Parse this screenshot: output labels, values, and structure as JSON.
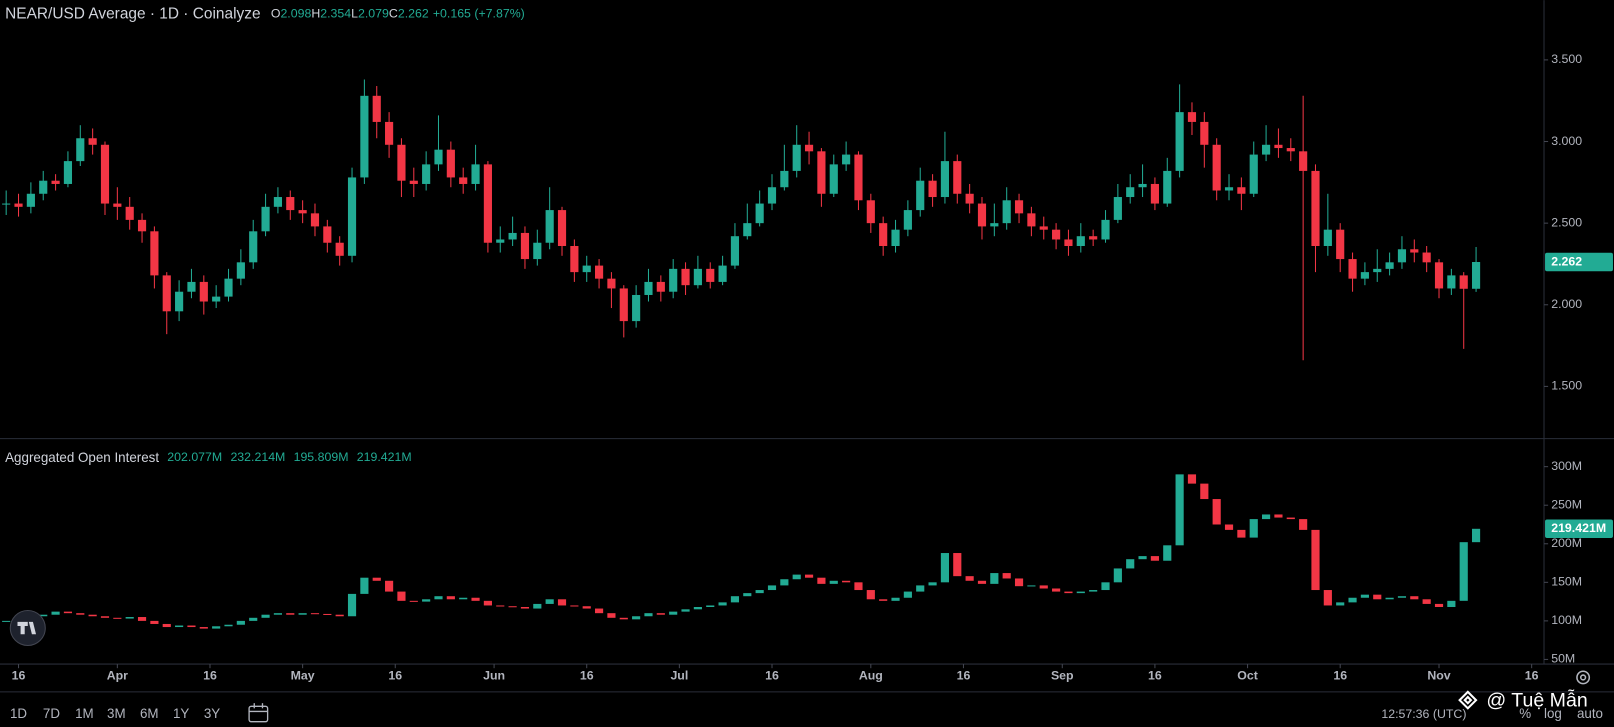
{
  "chart_data": [
    {
      "type": "candlestick",
      "title": "NEAR/USD Average · 1D · Coinalyze",
      "ohlc_keys": [
        "O",
        "H",
        "L",
        "C"
      ],
      "change": "+0.165 (+7.87%)",
      "up_color": "#22ab94",
      "down_color": "#f23645",
      "xlim": [
        -3,
        247
      ],
      "ylim": [
        1.18,
        3.866
      ],
      "yticks": [
        {
          "value": 1.5,
          "label": "1.500"
        },
        {
          "value": 2,
          "label": "2.000"
        },
        {
          "value": 2.5,
          "label": "2.500"
        },
        {
          "value": 3,
          "label": "3.000"
        },
        {
          "value": 3.5,
          "label": "3.500"
        }
      ],
      "x": [
        -2,
        0,
        2,
        4,
        6,
        8,
        10,
        12,
        14,
        16,
        18,
        20,
        22,
        24,
        26,
        28,
        30,
        32,
        34,
        36,
        38,
        40,
        42,
        44,
        46,
        48,
        50,
        52,
        54,
        56,
        58,
        60,
        62,
        64,
        66,
        68,
        70,
        72,
        74,
        76,
        78,
        80,
        82,
        84,
        86,
        88,
        90,
        92,
        94,
        96,
        98,
        100,
        102,
        104,
        106,
        108,
        110,
        112,
        114,
        116,
        118,
        120,
        122,
        124,
        126,
        128,
        130,
        132,
        134,
        136,
        138,
        140,
        142,
        144,
        146,
        148,
        150,
        152,
        154,
        156,
        158,
        160,
        162,
        164,
        166,
        168,
        170,
        172,
        174,
        176,
        178,
        180,
        182,
        184,
        186,
        188,
        190,
        192,
        194,
        196,
        198,
        200,
        202,
        204,
        206,
        208,
        210,
        212,
        214,
        216,
        218,
        220,
        222,
        224,
        226,
        228,
        230,
        232,
        234,
        236
      ],
      "close": [
        2.62,
        2.6,
        2.68,
        2.76,
        2.74,
        2.88,
        3.02,
        2.98,
        2.62,
        2.6,
        2.52,
        2.45,
        2.18,
        1.96,
        2.08,
        2.14,
        2.02,
        2.05,
        2.16,
        2.26,
        2.45,
        2.6,
        2.66,
        2.58,
        2.56,
        2.48,
        2.38,
        2.3,
        2.78,
        3.28,
        3.12,
        2.98,
        2.76,
        2.74,
        2.86,
        2.95,
        2.78,
        2.74,
        2.86,
        2.38,
        2.4,
        2.44,
        2.28,
        2.38,
        2.58,
        2.36,
        2.2,
        2.24,
        2.16,
        2.1,
        1.9,
        2.06,
        2.14,
        2.08,
        2.22,
        2.12,
        2.22,
        2.14,
        2.24,
        2.42,
        2.5,
        2.62,
        2.72,
        2.82,
        2.98,
        2.94,
        2.68,
        2.86,
        2.92,
        2.64,
        2.5,
        2.36,
        2.46,
        2.58,
        2.76,
        2.66,
        2.88,
        2.68,
        2.62,
        2.48,
        2.5,
        2.64,
        2.56,
        2.48,
        2.46,
        2.4,
        2.36,
        2.42,
        2.4,
        2.52,
        2.66,
        2.72,
        2.74,
        2.62,
        2.82,
        3.18,
        3.12,
        2.98,
        2.7,
        2.72,
        2.68,
        2.92,
        2.98,
        2.96,
        2.94,
        2.82,
        2.36,
        2.46,
        2.28,
        2.16,
        2.2,
        2.22,
        2.26,
        2.34,
        2.32,
        2.26,
        2.1,
        2.18,
        2.098,
        2.262
      ],
      "high": [
        2.7,
        2.68,
        2.75,
        2.82,
        2.8,
        2.94,
        3.1,
        3.08,
        3.0,
        2.72,
        2.66,
        2.56,
        2.48,
        2.2,
        2.15,
        2.22,
        2.18,
        2.12,
        2.22,
        2.34,
        2.52,
        2.68,
        2.72,
        2.7,
        2.64,
        2.62,
        2.52,
        2.42,
        2.84,
        3.38,
        3.34,
        3.18,
        3.02,
        2.84,
        2.94,
        3.16,
        3.0,
        2.84,
        2.98,
        2.88,
        2.48,
        2.54,
        2.48,
        2.46,
        2.72,
        2.6,
        2.4,
        2.3,
        2.28,
        2.2,
        2.12,
        2.12,
        2.22,
        2.18,
        2.28,
        2.26,
        2.3,
        2.26,
        2.3,
        2.5,
        2.62,
        2.7,
        2.8,
        2.98,
        3.1,
        3.06,
        2.96,
        2.92,
        3.0,
        2.94,
        2.68,
        2.54,
        2.52,
        2.64,
        2.84,
        2.8,
        3.06,
        2.92,
        2.74,
        2.66,
        2.62,
        2.72,
        2.68,
        2.6,
        2.54,
        2.5,
        2.46,
        2.5,
        2.46,
        2.58,
        2.74,
        2.8,
        2.86,
        2.78,
        2.9,
        3.35,
        3.24,
        3.18,
        3.02,
        2.8,
        2.78,
        3.0,
        3.1,
        3.08,
        3.02,
        3.28,
        2.86,
        2.68,
        2.5,
        2.32,
        2.26,
        2.34,
        2.32,
        2.42,
        2.4,
        2.36,
        2.28,
        2.22,
        2.2,
        2.354
      ],
      "low": [
        2.55,
        2.54,
        2.56,
        2.64,
        2.7,
        2.72,
        2.85,
        2.92,
        2.55,
        2.52,
        2.46,
        2.38,
        2.1,
        1.82,
        1.9,
        2.04,
        1.94,
        1.98,
        2.02,
        2.12,
        2.22,
        2.42,
        2.56,
        2.52,
        2.5,
        2.42,
        2.32,
        2.24,
        2.26,
        2.74,
        3.02,
        2.9,
        2.66,
        2.66,
        2.7,
        2.82,
        2.72,
        2.68,
        2.7,
        2.32,
        2.32,
        2.36,
        2.22,
        2.24,
        2.34,
        2.3,
        2.14,
        2.14,
        2.1,
        1.98,
        1.8,
        1.86,
        2.02,
        2.02,
        2.04,
        2.06,
        2.1,
        2.1,
        2.12,
        2.22,
        2.4,
        2.48,
        2.58,
        2.7,
        2.78,
        2.86,
        2.6,
        2.66,
        2.82,
        2.58,
        2.44,
        2.3,
        2.32,
        2.42,
        2.54,
        2.6,
        2.62,
        2.62,
        2.56,
        2.4,
        2.42,
        2.46,
        2.5,
        2.42,
        2.4,
        2.34,
        2.3,
        2.32,
        2.36,
        2.38,
        2.5,
        2.62,
        2.66,
        2.58,
        2.6,
        2.78,
        3.04,
        2.84,
        2.64,
        2.64,
        2.58,
        2.66,
        2.88,
        2.9,
        2.88,
        1.66,
        2.2,
        2.3,
        2.2,
        2.08,
        2.12,
        2.14,
        2.18,
        2.22,
        2.26,
        2.2,
        2.04,
        2.06,
        1.73,
        2.079
      ]
    },
    {
      "type": "candlestick",
      "title": "Aggregated Open Interest",
      "legend_values": [
        "202.077M",
        "232.214M",
        "195.809M",
        "219.421M"
      ],
      "last_label": "219.421M",
      "up_color": "#22ab94",
      "down_color": "#f23645",
      "xlim": [
        -3,
        247
      ],
      "ylim": [
        44,
        335
      ],
      "yticks": [
        {
          "value": 50,
          "label": "50M"
        },
        {
          "value": 100,
          "label": "100M"
        },
        {
          "value": 150,
          "label": "150M"
        },
        {
          "value": 200,
          "label": "200M"
        },
        {
          "value": 250,
          "label": "250M"
        },
        {
          "value": 300,
          "label": "300M"
        }
      ],
      "xticks": [
        {
          "value": 0,
          "label": "16"
        },
        {
          "value": 16,
          "label": "Apr"
        },
        {
          "value": 31,
          "label": "16"
        },
        {
          "value": 46,
          "label": "May"
        },
        {
          "value": 61,
          "label": "16"
        },
        {
          "value": 77,
          "label": "Jun"
        },
        {
          "value": 92,
          "label": "16"
        },
        {
          "value": 107,
          "label": "Jul"
        },
        {
          "value": 122,
          "label": "16"
        },
        {
          "value": 138,
          "label": "Aug"
        },
        {
          "value": 153,
          "label": "16"
        },
        {
          "value": 169,
          "label": "Sep"
        },
        {
          "value": 184,
          "label": "16"
        },
        {
          "value": 199,
          "label": "Oct"
        },
        {
          "value": 214,
          "label": "16"
        },
        {
          "value": 230,
          "label": "Nov"
        },
        {
          "value": 245,
          "label": "16"
        }
      ],
      "x": [
        -2,
        0,
        2,
        4,
        6,
        8,
        10,
        12,
        14,
        16,
        18,
        20,
        22,
        24,
        26,
        28,
        30,
        32,
        34,
        36,
        38,
        40,
        42,
        44,
        46,
        48,
        50,
        52,
        54,
        56,
        58,
        60,
        62,
        64,
        66,
        68,
        70,
        72,
        74,
        76,
        78,
        80,
        82,
        84,
        86,
        88,
        90,
        92,
        94,
        96,
        98,
        100,
        102,
        104,
        106,
        108,
        110,
        112,
        114,
        116,
        118,
        120,
        122,
        124,
        126,
        128,
        130,
        132,
        134,
        136,
        138,
        140,
        142,
        144,
        146,
        148,
        150,
        152,
        154,
        156,
        158,
        160,
        162,
        164,
        166,
        168,
        170,
        172,
        174,
        176,
        178,
        180,
        182,
        184,
        186,
        188,
        190,
        192,
        194,
        196,
        198,
        200,
        202,
        204,
        206,
        208,
        210,
        212,
        214,
        216,
        218,
        220,
        222,
        224,
        226,
        228,
        230,
        232,
        234,
        236
      ],
      "close": [
        100,
        104,
        106,
        108,
        112,
        110,
        108,
        106,
        104,
        103,
        105,
        100,
        96,
        92,
        94,
        92,
        90,
        93,
        95,
        100,
        104,
        108,
        110,
        108,
        110,
        109,
        108,
        106,
        135,
        156,
        152,
        138,
        126,
        125,
        128,
        132,
        128,
        130,
        126,
        120,
        119,
        118,
        116,
        122,
        128,
        120,
        119,
        116,
        110,
        104,
        102,
        106,
        110,
        108,
        112,
        115,
        118,
        120,
        124,
        132,
        136,
        140,
        146,
        154,
        160,
        156,
        148,
        152,
        150,
        140,
        128,
        126,
        130,
        138,
        146,
        150,
        188,
        158,
        152,
        148,
        162,
        155,
        145,
        146,
        142,
        138,
        136,
        138,
        140,
        150,
        168,
        180,
        184,
        178,
        198,
        290,
        278,
        258,
        225,
        218,
        208,
        232,
        238,
        234,
        232,
        218,
        140,
        120,
        124,
        130,
        134,
        128,
        130,
        132,
        128,
        122,
        118,
        126,
        202.077,
        219.421
      ]
    }
  ],
  "ui": {
    "ranges": [
      "1D",
      "7D",
      "1M",
      "3M",
      "6M",
      "1Y",
      "3Y"
    ],
    "clock": "12:57:36 (UTC)",
    "scale_options": [
      "%",
      "log",
      "auto"
    ],
    "watermark": "@ Tuệ Mẫn"
  }
}
